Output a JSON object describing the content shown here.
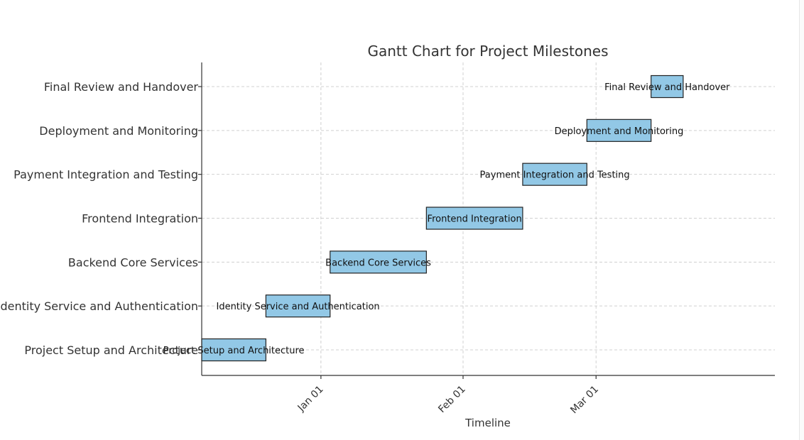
{
  "chart_data": {
    "type": "gantt",
    "title": "Gantt Chart for Project Milestones",
    "xlabel": "Timeline",
    "ylabel": "",
    "bar_color": "#92c8e6",
    "x_ticks": [
      "Jan 01",
      "Feb 01",
      "Mar 01"
    ],
    "x_tick_dates": [
      "2024-01-01",
      "2024-02-01",
      "2024-03-01"
    ],
    "xlim": [
      "2023-12-06",
      "2024-03-28"
    ],
    "grid": true,
    "tasks": [
      {
        "name": "Project Setup and Architecture",
        "start": "2023-12-06",
        "end": "2023-12-20"
      },
      {
        "name": "Identity Service and Authentication",
        "start": "2023-12-20",
        "end": "2024-01-03"
      },
      {
        "name": "Backend Core Services",
        "start": "2024-01-03",
        "end": "2024-01-24"
      },
      {
        "name": "Frontend Integration",
        "start": "2024-01-24",
        "end": "2024-02-14"
      },
      {
        "name": "Payment Integration and Testing",
        "start": "2024-02-14",
        "end": "2024-02-28"
      },
      {
        "name": "Deployment and Monitoring",
        "start": "2024-02-28",
        "end": "2024-03-13"
      },
      {
        "name": "Final Review and Handover",
        "start": "2024-03-13",
        "end": "2024-03-20"
      }
    ]
  }
}
